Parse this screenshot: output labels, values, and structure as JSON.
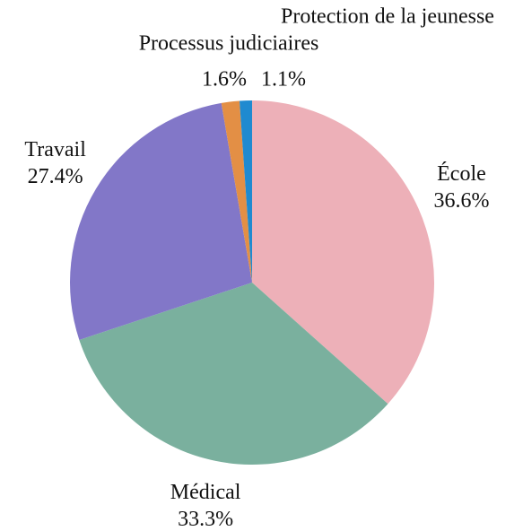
{
  "chart_data": {
    "type": "pie",
    "categories": [
      "École",
      "Médical",
      "Travail",
      "Processus judiciaires",
      "Protection de la jeunesse"
    ],
    "values": [
      36.6,
      33.3,
      27.4,
      1.6,
      1.1
    ],
    "value_labels": [
      "36.6%",
      "33.3%",
      "27.4%",
      "1.6%",
      "1.1%"
    ],
    "colors": [
      "#edb0b8",
      "#7ab09e",
      "#8277c8",
      "#e38f45",
      "#1f8ad0"
    ]
  }
}
